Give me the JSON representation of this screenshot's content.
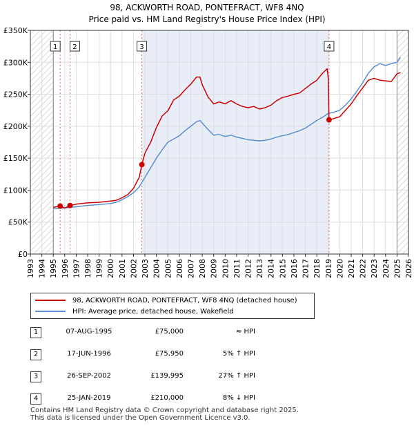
{
  "chart_data": {
    "type": "line",
    "title": "98, ACKWORTH ROAD, PONTEFRACT, WF8 4NQ",
    "subtitle": "Price paid vs. HM Land Registry's House Price Index (HPI)",
    "xlabel": "",
    "ylabel": "",
    "xlim": [
      1993,
      2026
    ],
    "ylim": [
      0,
      350000
    ],
    "y_ticks": [
      0,
      50000,
      100000,
      150000,
      200000,
      250000,
      300000,
      350000
    ],
    "y_tick_labels": [
      "£0",
      "£50K",
      "£100K",
      "£150K",
      "£200K",
      "£250K",
      "£300K",
      "£350K"
    ],
    "x_ticks": [
      1993,
      1994,
      1995,
      1996,
      1997,
      1998,
      1999,
      2000,
      2001,
      2002,
      2003,
      2004,
      2005,
      2006,
      2007,
      2008,
      2009,
      2010,
      2011,
      2012,
      2013,
      2014,
      2015,
      2016,
      2017,
      2018,
      2019,
      2020,
      2021,
      2022,
      2023,
      2024,
      2025,
      2026
    ],
    "hatch_before": 1995.0,
    "hatch_after": 2025.0,
    "shade_range": [
      2002.73,
      2019.07
    ],
    "series": [
      {
        "name": "98, ACKWORTH ROAD, PONTEFRACT, WF8 4NQ (detached house)",
        "color": "#cc0000",
        "x": [
          1995.0,
          1995.6,
          1996.0,
          1996.46,
          1997.0,
          1998.0,
          1999.0,
          2000.0,
          2000.5,
          2001.0,
          2001.5,
          2002.0,
          2002.5,
          2002.73,
          2003.0,
          2003.5,
          2004.0,
          2004.5,
          2005.0,
          2005.5,
          2006.0,
          2006.5,
          2007.0,
          2007.5,
          2007.8,
          2008.0,
          2008.5,
          2009.0,
          2009.5,
          2010.0,
          2010.5,
          2011.0,
          2011.5,
          2012.0,
          2012.5,
          2013.0,
          2013.5,
          2014.0,
          2014.5,
          2015.0,
          2015.5,
          2016.0,
          2016.5,
          2017.0,
          2017.5,
          2018.0,
          2018.5,
          2018.9,
          2019.0,
          2019.07,
          2019.5,
          2020.0,
          2020.5,
          2021.0,
          2021.5,
          2022.0,
          2022.5,
          2023.0,
          2023.5,
          2024.0,
          2024.5,
          2025.0,
          2025.3
        ],
        "y": [
          73000,
          75000,
          72000,
          75950,
          78000,
          80000,
          81000,
          83000,
          84000,
          88000,
          93000,
          103000,
          120000,
          139995,
          158000,
          175000,
          198000,
          216000,
          224000,
          241000,
          247000,
          257000,
          266000,
          277000,
          277000,
          265000,
          246000,
          235000,
          238000,
          235000,
          240000,
          235000,
          231000,
          229000,
          231000,
          227000,
          229000,
          233000,
          240000,
          245000,
          247000,
          250000,
          252000,
          259000,
          266000,
          272000,
          283000,
          290000,
          275000,
          210000,
          212000,
          215000,
          225000,
          235000,
          248000,
          260000,
          272000,
          275000,
          272000,
          271000,
          270000,
          282000,
          284000
        ]
      },
      {
        "name": "HPI: Average price, detached house, Wakefield",
        "color": "#5b8fcf",
        "x": [
          1995.0,
          1996.0,
          1997.0,
          1998.0,
          1999.0,
          2000.0,
          2000.5,
          2001.0,
          2001.5,
          2002.0,
          2002.5,
          2003.0,
          2003.5,
          2004.0,
          2004.5,
          2005.0,
          2005.5,
          2006.0,
          2006.5,
          2007.0,
          2007.5,
          2007.8,
          2008.0,
          2008.5,
          2009.0,
          2009.5,
          2010.0,
          2010.5,
          2011.0,
          2011.5,
          2012.0,
          2012.5,
          2013.0,
          2013.5,
          2014.0,
          2014.5,
          2015.0,
          2015.5,
          2016.0,
          2016.5,
          2017.0,
          2017.5,
          2018.0,
          2018.5,
          2019.0,
          2019.5,
          2020.0,
          2020.5,
          2021.0,
          2021.5,
          2022.0,
          2022.5,
          2023.0,
          2023.5,
          2024.0,
          2024.5,
          2025.0,
          2025.3
        ],
        "y": [
          71000,
          72000,
          74000,
          76000,
          77500,
          79000,
          81000,
          85000,
          90000,
          96000,
          105000,
          120000,
          135000,
          150000,
          163000,
          175000,
          180000,
          185000,
          193000,
          200000,
          207000,
          209000,
          205000,
          195000,
          186000,
          187000,
          184000,
          186000,
          183000,
          181000,
          179000,
          178000,
          177000,
          178000,
          180000,
          183000,
          185000,
          187000,
          190000,
          193000,
          197000,
          203000,
          209000,
          214000,
          220000,
          222000,
          225000,
          233000,
          243000,
          255000,
          268000,
          283000,
          293000,
          298000,
          295000,
          298000,
          300000,
          308000
        ]
      }
    ],
    "sales": [
      {
        "label": "1",
        "x": 1995.6,
        "y": 75000
      },
      {
        "label": "2",
        "x": 1996.46,
        "y": 75950
      },
      {
        "label": "3",
        "x": 2002.73,
        "y": 139995
      },
      {
        "label": "4",
        "x": 2019.07,
        "y": 210000
      }
    ]
  },
  "legend": {
    "property_label": "98, ACKWORTH ROAD, PONTEFRACT, WF8 4NQ (detached house)",
    "hpi_label": "HPI: Average price, detached house, Wakefield"
  },
  "transactions": [
    {
      "num": "1",
      "date": "07-AUG-1995",
      "price": "£75,000",
      "hpi": "≈ HPI"
    },
    {
      "num": "2",
      "date": "17-JUN-1996",
      "price": "£75,950",
      "hpi": "5% ↑ HPI"
    },
    {
      "num": "3",
      "date": "26-SEP-2002",
      "price": "£139,995",
      "hpi": "27% ↑ HPI"
    },
    {
      "num": "4",
      "date": "25-JAN-2019",
      "price": "£210,000",
      "hpi": "8% ↓ HPI"
    }
  ],
  "footer": {
    "line1": "Contains HM Land Registry data © Crown copyright and database right 2025.",
    "line2": "This data is licensed under the Open Government Licence v3.0."
  }
}
